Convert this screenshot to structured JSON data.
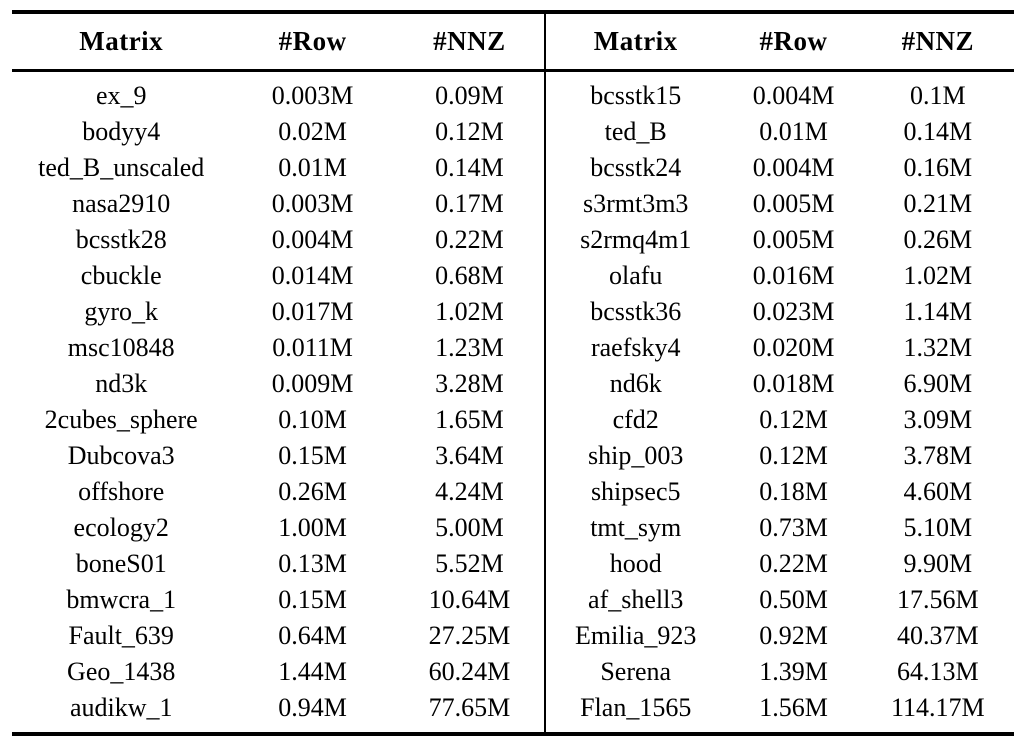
{
  "table": {
    "columns": [
      "Matrix",
      "#Row",
      "#NNZ",
      "Matrix",
      "#Row",
      "#NNZ"
    ],
    "rows": [
      [
        "ex_9",
        "0.003M",
        "0.09M",
        "bcsstk15",
        "0.004M",
        "0.1M"
      ],
      [
        "bodyy4",
        "0.02M",
        "0.12M",
        "ted_B",
        "0.01M",
        "0.14M"
      ],
      [
        "ted_B_unscaled",
        "0.01M",
        "0.14M",
        "bcsstk24",
        "0.004M",
        "0.16M"
      ],
      [
        "nasa2910",
        "0.003M",
        "0.17M",
        "s3rmt3m3",
        "0.005M",
        "0.21M"
      ],
      [
        "bcsstk28",
        "0.004M",
        "0.22M",
        "s2rmq4m1",
        "0.005M",
        "0.26M"
      ],
      [
        "cbuckle",
        "0.014M",
        "0.68M",
        "olafu",
        "0.016M",
        "1.02M"
      ],
      [
        "gyro_k",
        "0.017M",
        "1.02M",
        "bcsstk36",
        "0.023M",
        "1.14M"
      ],
      [
        "msc10848",
        "0.011M",
        "1.23M",
        "raefsky4",
        "0.020M",
        "1.32M"
      ],
      [
        "nd3k",
        "0.009M",
        "3.28M",
        "nd6k",
        "0.018M",
        "6.90M"
      ],
      [
        "2cubes_sphere",
        "0.10M",
        "1.65M",
        "cfd2",
        "0.12M",
        "3.09M"
      ],
      [
        "Dubcova3",
        "0.15M",
        "3.64M",
        "ship_003",
        "0.12M",
        "3.78M"
      ],
      [
        "offshore",
        "0.26M",
        "4.24M",
        "shipsec5",
        "0.18M",
        "4.60M"
      ],
      [
        "ecology2",
        "1.00M",
        "5.00M",
        "tmt_sym",
        "0.73M",
        "5.10M"
      ],
      [
        "boneS01",
        "0.13M",
        "5.52M",
        "hood",
        "0.22M",
        "9.90M"
      ],
      [
        "bmwcra_1",
        "0.15M",
        "10.64M",
        "af_shell3",
        "0.50M",
        "17.56M"
      ],
      [
        "Fault_639",
        "0.64M",
        "27.25M",
        "Emilia_923",
        "0.92M",
        "40.37M"
      ],
      [
        "Geo_1438",
        "1.44M",
        "60.24M",
        "Serena",
        "1.39M",
        "64.13M"
      ],
      [
        "audikw_1",
        "0.94M",
        "77.65M",
        "Flan_1565",
        "1.56M",
        "114.17M"
      ]
    ]
  },
  "colors": {
    "text": "#000000",
    "background": "#ffffff",
    "rule": "#000000"
  }
}
